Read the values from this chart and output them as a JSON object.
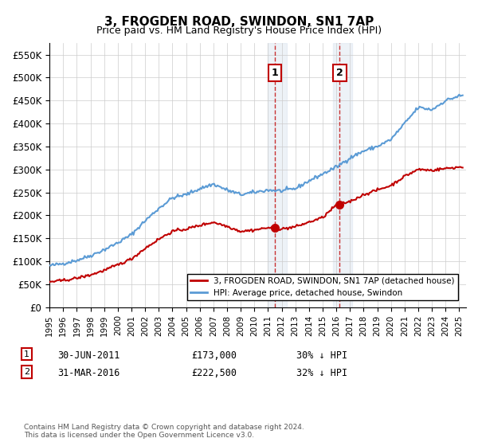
{
  "title": "3, FROGDEN ROAD, SWINDON, SN1 7AP",
  "subtitle": "Price paid vs. HM Land Registry's House Price Index (HPI)",
  "ylabel_ticks": [
    "£0",
    "£50K",
    "£100K",
    "£150K",
    "£200K",
    "£250K",
    "£300K",
    "£350K",
    "£400K",
    "£450K",
    "£500K",
    "£550K"
  ],
  "ytick_values": [
    0,
    50000,
    100000,
    150000,
    200000,
    250000,
    300000,
    350000,
    400000,
    450000,
    500000,
    550000
  ],
  "ylim": [
    0,
    575000
  ],
  "xlim_start": 1995.0,
  "xlim_end": 2025.5,
  "transaction1_date": 2011.5,
  "transaction1_price": 173000,
  "transaction1_label": "1",
  "transaction2_date": 2016.25,
  "transaction2_price": 222500,
  "transaction2_label": "2",
  "legend_line1": "3, FROGDEN ROAD, SWINDON, SN1 7AP (detached house)",
  "legend_line2": "HPI: Average price, detached house, Swindon",
  "annotation1": "1    30-JUN-2011    £173,000    30% ↓ HPI",
  "annotation2": "2    31-MAR-2016    £222,500    32% ↓ HPI",
  "footnote": "Contains HM Land Registry data © Crown copyright and database right 2024.\nThis data is licensed under the Open Government Licence v3.0.",
  "hpi_color": "#5b9bd5",
  "price_color": "#c00000",
  "background_shade": "#dce6f1",
  "vline_color": "#c00000",
  "marker_color": "#c00000"
}
